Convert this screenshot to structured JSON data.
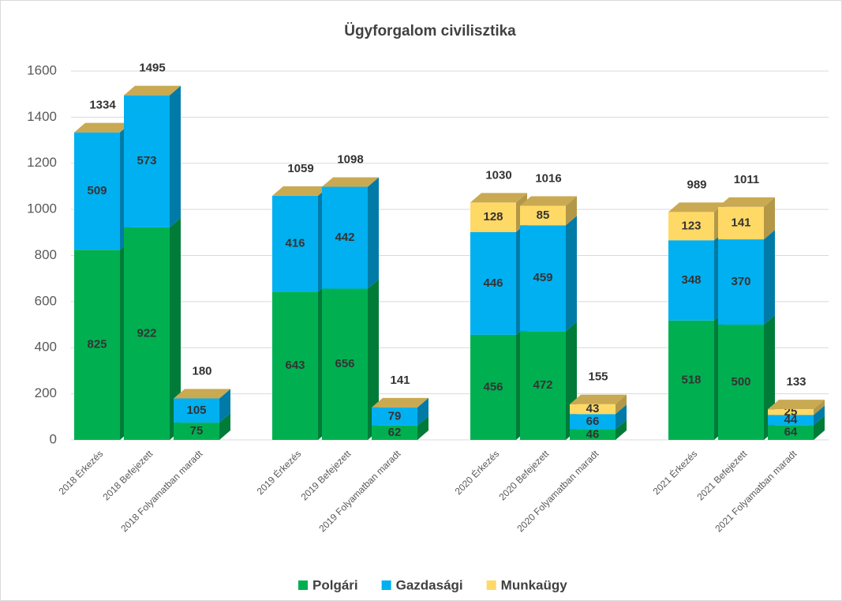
{
  "chart_data": {
    "type": "bar3d_stacked",
    "title": "Ügyforgalom civilisztika",
    "categories": [
      "2018 Érkezés",
      "2018 Befejezett",
      "2018 Folyamatban maradt",
      "2019 Érkezés",
      "2019 Befejezett",
      "2019 Folyamatban maradt",
      "2020 Érkezés",
      "2020 Befejezett",
      "2020 Folyamatban maradt",
      "2021 Érkezés",
      "2021 Befejezett",
      "2021 Folyamatban maradt"
    ],
    "series": [
      {
        "name": "Polgári",
        "color": "#00b050",
        "values": [
          825,
          922,
          75,
          643,
          656,
          62,
          456,
          472,
          46,
          518,
          500,
          64
        ]
      },
      {
        "name": "Gazdasági",
        "color": "#00b0f0",
        "values": [
          509,
          573,
          105,
          416,
          442,
          79,
          446,
          459,
          66,
          348,
          370,
          44
        ]
      },
      {
        "name": "Munkaügy",
        "color": "#ffd966",
        "values": [
          null,
          null,
          null,
          null,
          null,
          null,
          128,
          85,
          43,
          123,
          141,
          25
        ]
      }
    ],
    "totals": [
      1334,
      1495,
      180,
      1059,
      1098,
      141,
      1030,
      1016,
      155,
      989,
      1011,
      133
    ],
    "ylim": [
      0,
      1600
    ],
    "yticks": [
      0,
      200,
      400,
      600,
      800,
      1000,
      1200,
      1400,
      1600
    ],
    "grid": true,
    "legend": "bottom"
  }
}
